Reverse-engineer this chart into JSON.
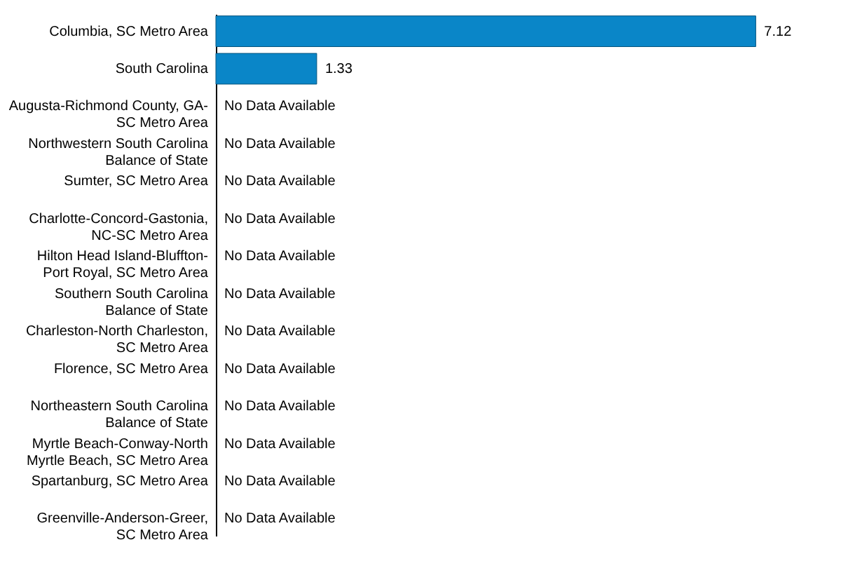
{
  "chart_data": {
    "type": "bar",
    "orientation": "horizontal",
    "categories": [
      "Columbia, SC Metro Area",
      "South Carolina",
      "Augusta-Richmond County, GA-SC Metro Area",
      "Northwestern South Carolina Balance of State",
      "Sumter, SC Metro Area",
      "Charlotte-Concord-Gastonia, NC-SC Metro Area",
      "Hilton Head Island-Bluffton-Port Royal, SC Metro Area",
      "Southern South Carolina Balance of State",
      "Charleston-North Charleston, SC Metro Area",
      "Florence, SC Metro Area",
      "Northeastern South Carolina Balance of State",
      "Myrtle Beach-Conway-North Myrtle Beach, SC Metro Area",
      "Spartanburg, SC Metro Area",
      "Greenville-Anderson-Greer, SC Metro Area"
    ],
    "values": [
      7.12,
      1.33,
      null,
      null,
      null,
      null,
      null,
      null,
      null,
      null,
      null,
      null,
      null,
      null
    ],
    "value_labels": [
      "7.12",
      "1.33",
      "No Data Available",
      "No Data Available",
      "No Data Available",
      "No Data Available",
      "No Data Available",
      "No Data Available",
      "No Data Available",
      "No Data Available",
      "No Data Available",
      "No Data Available",
      "No Data Available",
      "No Data Available"
    ],
    "color": "#0a86c8",
    "grid": false
  }
}
